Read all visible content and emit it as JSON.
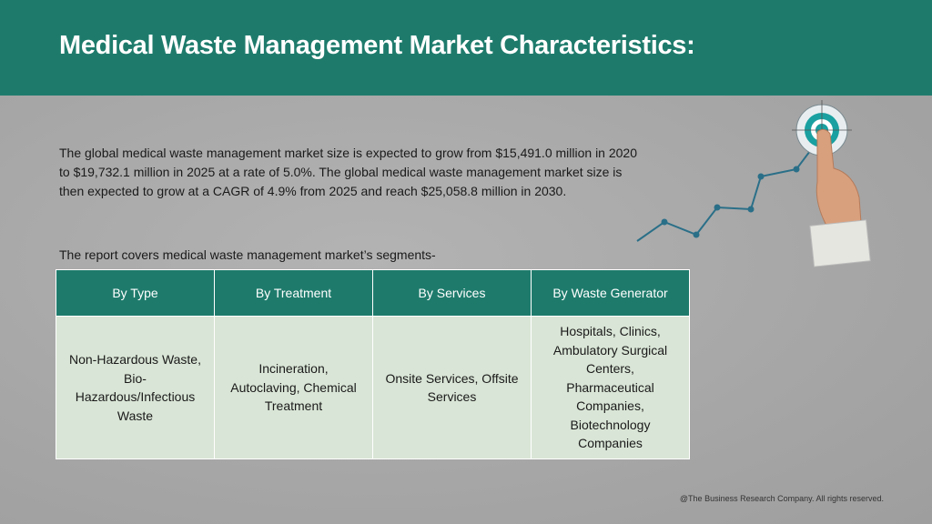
{
  "header": {
    "title": "Medical Waste Management Market Characteristics:"
  },
  "body": {
    "paragraph": "The global medical waste management market size is expected to grow from $15,491.0 million in 2020 to $19,732.1 million in 2025 at a rate of 5.0%. The global medical waste management market size is then expected to grow at a CAGR of 4.9% from 2025 and reach $25,058.8 million in 2030.",
    "intro": "The report covers medical waste management market’s segments-"
  },
  "table": {
    "headers": [
      "By Type",
      "By Treatment",
      "By Services",
      "By Waste Generator"
    ],
    "rows": [
      [
        "Non-Hazardous Waste, Bio-Hazardous/Infectious Waste",
        "Incineration, Autoclaving, Chemical Treatment",
        "Onsite Services, Offsite Services",
        "Hospitals, Clinics, Ambulatory Surgical Centers, Pharmaceutical Companies, Biotechnology Companies"
      ]
    ]
  },
  "footer": {
    "text": "@The Business Research Company. All rights reserved."
  }
}
